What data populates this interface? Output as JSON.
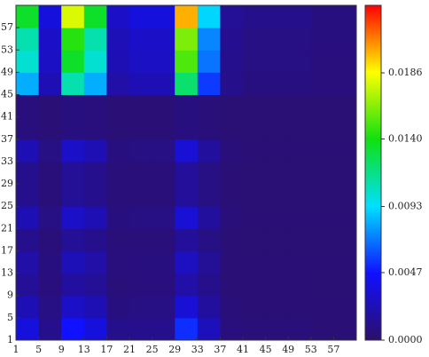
{
  "chart_data": {
    "type": "heatmap",
    "x": [
      3,
      7,
      11,
      15,
      19,
      23,
      27,
      31,
      35,
      39,
      43,
      47,
      51,
      55,
      59
    ],
    "y": [
      3,
      7,
      11,
      15,
      19,
      23,
      27,
      31,
      35,
      39,
      43,
      47,
      51,
      55,
      59
    ],
    "values": [
      [
        0.0036,
        0.0011,
        0.0047,
        0.0036,
        0.001,
        0.0011,
        0.0011,
        0.0053,
        0.0025,
        0.0006,
        0.0005,
        0.0005,
        0.0005,
        0.0004,
        0.0004
      ],
      [
        0.0023,
        0.0008,
        0.0029,
        0.0023,
        0.0007,
        0.0008,
        0.0008,
        0.0033,
        0.0016,
        0.0005,
        0.0004,
        0.0004,
        0.0004,
        0.0004,
        0.0004
      ],
      [
        0.0014,
        0.0006,
        0.0017,
        0.0014,
        0.0005,
        0.0006,
        0.0006,
        0.0019,
        0.001,
        0.0004,
        0.0004,
        0.0004,
        0.0004,
        0.0003,
        0.0003
      ],
      [
        0.0019,
        0.0007,
        0.0024,
        0.0019,
        0.0006,
        0.0007,
        0.0007,
        0.0027,
        0.0014,
        0.0004,
        0.0004,
        0.0004,
        0.0004,
        0.0004,
        0.0004
      ],
      [
        0.0011,
        0.0005,
        0.0014,
        0.0011,
        0.0005,
        0.0005,
        0.0005,
        0.0015,
        0.0008,
        0.0004,
        0.0003,
        0.0003,
        0.0003,
        0.0003,
        0.0003
      ],
      [
        0.0023,
        0.0008,
        0.0029,
        0.0023,
        0.0007,
        0.0008,
        0.0008,
        0.0033,
        0.0016,
        0.0005,
        0.0004,
        0.0004,
        0.0004,
        0.0004,
        0.0004
      ],
      [
        0.0011,
        0.0005,
        0.0014,
        0.0011,
        0.0005,
        0.0005,
        0.0005,
        0.0015,
        0.0008,
        0.0004,
        0.0003,
        0.0003,
        0.0003,
        0.0003,
        0.0003
      ],
      [
        0.0011,
        0.0005,
        0.0014,
        0.0011,
        0.0005,
        0.0005,
        0.0005,
        0.0015,
        0.0008,
        0.0004,
        0.0003,
        0.0003,
        0.0003,
        0.0003,
        0.0003
      ],
      [
        0.0023,
        0.0008,
        0.0029,
        0.0023,
        0.0007,
        0.0008,
        0.0008,
        0.0033,
        0.0016,
        0.0005,
        0.0004,
        0.0004,
        0.0004,
        0.0004,
        0.0004
      ],
      [
        0.0006,
        0.0004,
        0.0007,
        0.0006,
        0.0004,
        0.0004,
        0.0004,
        0.0007,
        0.0005,
        0.0003,
        0.0003,
        0.0003,
        0.0003,
        0.0003,
        0.0003
      ],
      [
        0.0006,
        0.0004,
        0.0007,
        0.0006,
        0.0004,
        0.0004,
        0.0004,
        0.0007,
        0.0005,
        0.0003,
        0.0003,
        0.0003,
        0.0003,
        0.0003,
        0.0003
      ],
      [
        0.0082,
        0.0023,
        0.0109,
        0.0082,
        0.0019,
        0.0023,
        0.0023,
        0.0122,
        0.0056,
        0.001,
        0.0007,
        0.0007,
        0.0007,
        0.0006,
        0.0006
      ],
      [
        0.0102,
        0.0028,
        0.0135,
        0.0102,
        0.0023,
        0.0028,
        0.0028,
        0.0152,
        0.0069,
        0.0011,
        0.0008,
        0.0008,
        0.0008,
        0.0006,
        0.0006
      ],
      [
        0.0109,
        0.0029,
        0.0144,
        0.0109,
        0.0024,
        0.0029,
        0.0029,
        0.0161,
        0.0073,
        0.0012,
        0.0008,
        0.0008,
        0.0008,
        0.0007,
        0.0007
      ],
      [
        0.0135,
        0.0036,
        0.0179,
        0.0135,
        0.0029,
        0.0036,
        0.0036,
        0.0201,
        0.0091,
        0.0014,
        0.001,
        0.001,
        0.001,
        0.0007,
        0.0007
      ]
    ],
    "xlim": [
      1,
      61
    ],
    "ylim": [
      1,
      61
    ],
    "xticks": [
      1,
      5,
      9,
      13,
      17,
      21,
      25,
      29,
      33,
      37,
      41,
      45,
      49,
      53,
      57
    ],
    "yticks": [
      1,
      5,
      9,
      13,
      17,
      21,
      25,
      29,
      33,
      37,
      41,
      45,
      49,
      53,
      57
    ],
    "clim": [
      0,
      0.0233
    ],
    "cticks": [
      {
        "value": 0,
        "label": "0.0000"
      },
      {
        "value": 0.0047,
        "label": "0.0047"
      },
      {
        "value": 0.0093,
        "label": "0.0093"
      },
      {
        "value": 0.014,
        "label": "0.0140"
      },
      {
        "value": 0.0186,
        "label": "0.0186"
      }
    ],
    "colormap": [
      "#2c0f6a",
      "#1010ff",
      "#00e0ff",
      "#10e010",
      "#ffff00",
      "#ff0000"
    ]
  }
}
